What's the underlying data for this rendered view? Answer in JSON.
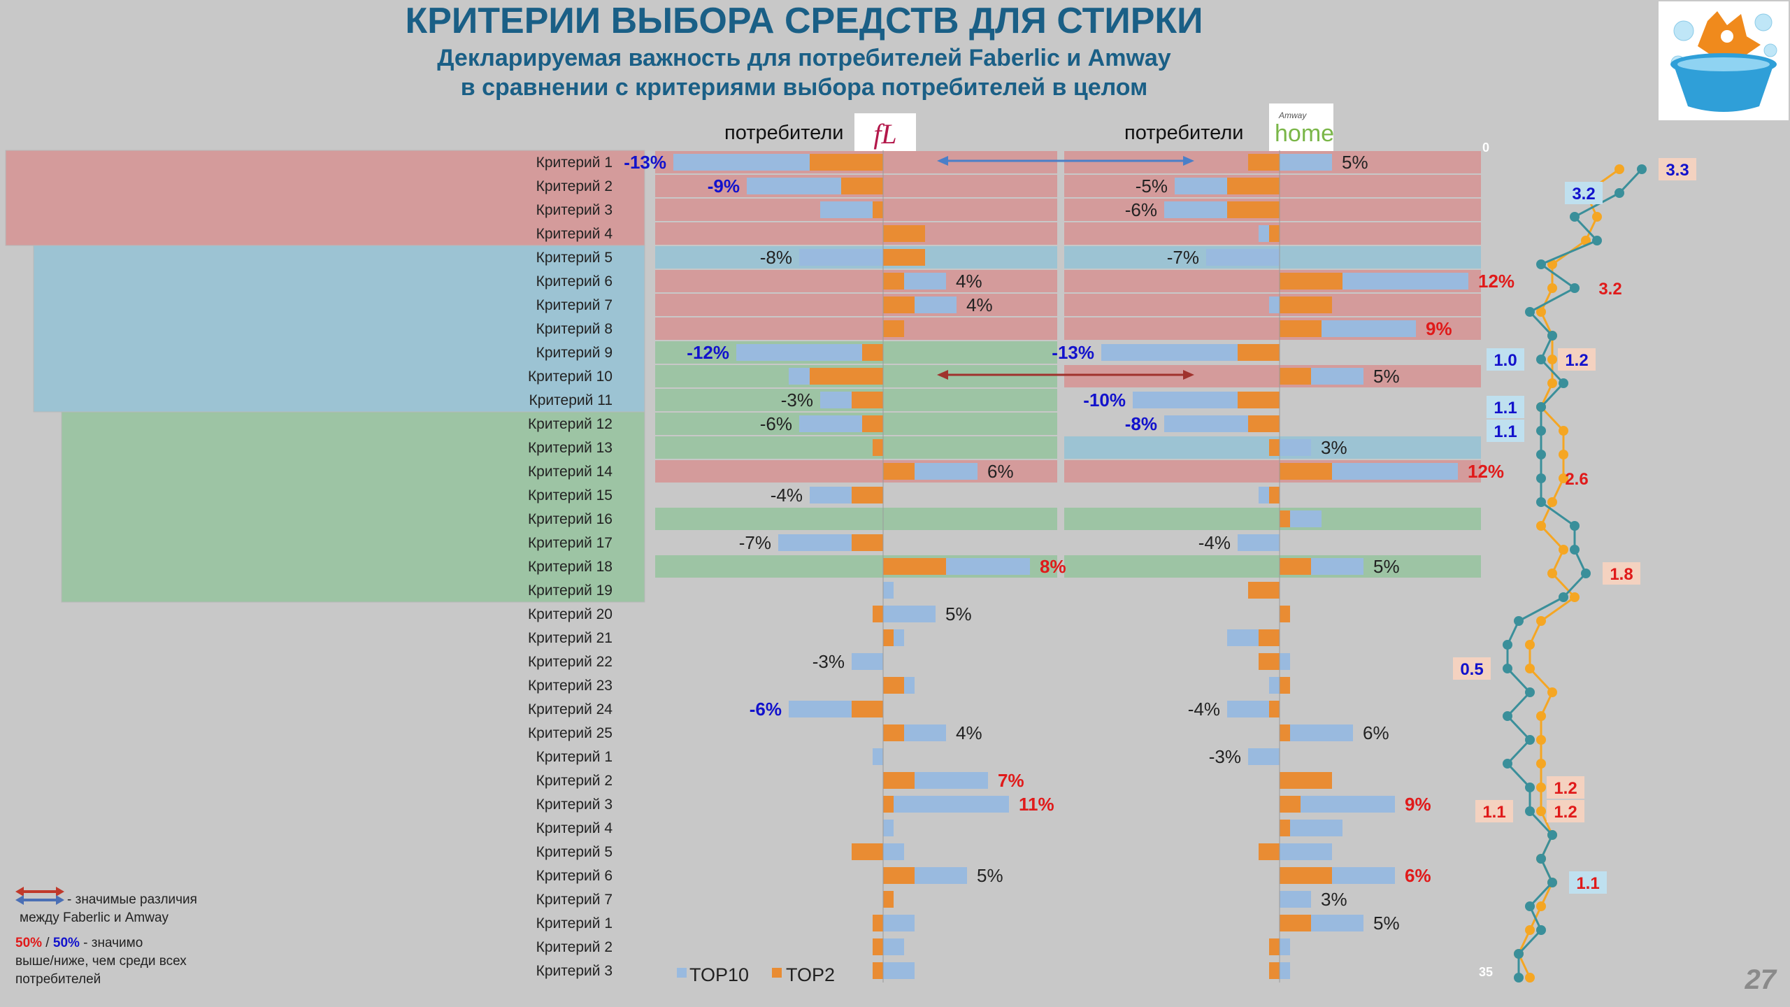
{
  "title": "КРИТЕРИИ ВЫБОРА СРЕДСТВ ДЛЯ СТИРКИ",
  "subtitle_line1": "Декларируемая важность для потребителей Faberlic и Amway",
  "subtitle_line2": "в сравнении с критериями выбора потребителей в целом",
  "faberlic_header": "потребители",
  "faberlic_logo_text": "fL",
  "amway_header": "потребители",
  "amway_logo_top": "Amway",
  "amway_logo_main": "home",
  "page_number": "27",
  "legend_note": {
    "arrow_text": "- значимые различия",
    "arrow_text2": "между Faberlic и Amway",
    "red_pct": "50%",
    "slash": " / ",
    "blue_pct": "50%",
    "sig_text": " - значимо",
    "sig_text2": "выше/ниже, чем среди всех",
    "sig_text3": "потребителей"
  },
  "colors": {
    "red_band": "#d49b9b",
    "blue_band": "#9cc3d3",
    "green_band": "#9dc4a4",
    "top10": "#99badf",
    "top2": "#e98c33",
    "title": "#1a5f86",
    "neg_sig": "#1212cc",
    "pos_sig": "#e01a1a",
    "line_teal": "#3a8f9a",
    "line_orange": "#f5a623"
  },
  "chart_data": {
    "type": "bar",
    "orientation": "horizontal-diverging",
    "legend": [
      "TOP10",
      "TOP2"
    ],
    "legend_placement": "bottom-center",
    "rank_axis_top": "0",
    "rank_axis_bottom": "35",
    "categories": [
      "Критерий 1",
      "Критерий 2",
      "Критерий 3",
      "Критерий 4",
      "Критерий 5",
      "Критерий 6",
      "Критерий 7",
      "Критерий 8",
      "Критерий 9",
      "Критерий 10",
      "Критерий 11",
      "Критерий 12",
      "Критерий 13",
      "Критерий 14",
      "Критерий 15",
      "Критерий 16",
      "Критерий 17",
      "Критерий 18",
      "Критерий 19",
      "Критерий 20",
      "Критерий 21",
      "Критерий 22",
      "Критерий 23",
      "Критерий 24",
      "Критерий 25",
      "Критерий 1",
      "Критерий 2",
      "Критерий 3",
      "Критерий 4",
      "Критерий 5",
      "Критерий 6",
      "Критерий 7",
      "Критерий 1",
      "Критерий 2",
      "Критерий 3"
    ],
    "faberlic": {
      "top10": [
        -13,
        -9,
        -5,
        0,
        -8,
        4,
        4,
        0,
        -12,
        -2,
        -3,
        -6,
        0,
        6,
        -4,
        0,
        -7,
        8,
        1,
        5,
        1,
        -3,
        1,
        -6,
        4,
        -1,
        7,
        11,
        1,
        2,
        5,
        0,
        3,
        2,
        3
      ],
      "top2": [
        -7,
        -4,
        -1,
        4,
        4,
        2,
        3,
        2,
        -2,
        -7,
        -3,
        -2,
        -1,
        3,
        -3,
        0,
        -3,
        6,
        0,
        -1,
        1,
        0,
        2,
        -3,
        2,
        0,
        3,
        1,
        0,
        -3,
        3,
        1,
        -1,
        -1,
        -1
      ],
      "labels": [
        "-13%",
        "-9%",
        "",
        "",
        "-8%",
        "4%",
        "4%",
        "",
        "-12%",
        "",
        "-3%",
        "-6%",
        "",
        "6%",
        "-4%",
        "",
        "-7%",
        "8%",
        "",
        "5%",
        "",
        "-3%",
        "",
        "-6%",
        "4%",
        "",
        "7%",
        "11%",
        "",
        "",
        "5%",
        "",
        "",
        "",
        ""
      ],
      "label_sig": [
        "neg",
        "neg",
        "",
        "",
        "",
        "",
        "",
        "",
        "neg",
        "",
        "",
        "",
        "",
        "",
        "",
        "",
        "",
        "pos",
        "",
        "",
        "",
        "",
        "",
        "neg",
        "",
        "",
        "pos",
        "pos",
        "",
        "",
        "",
        "",
        "",
        "",
        ""
      ]
    },
    "amway": {
      "top10": [
        5,
        -5,
        -6,
        -1,
        -7,
        12,
        -1,
        9,
        -13,
        5,
        -10,
        -8,
        3,
        12,
        -1,
        3,
        -4,
        5,
        0,
        0,
        -3,
        1,
        -1,
        -4,
        6,
        -3,
        0,
        9,
        5,
        5,
        6,
        3,
        5,
        1,
        1
      ],
      "top2": [
        -3,
        -5,
        -5,
        -1,
        0,
        6,
        5,
        4,
        -4,
        3,
        -4,
        -3,
        -1,
        5,
        -1,
        1,
        0,
        3,
        -3,
        1,
        -2,
        -2,
        1,
        -1,
        1,
        0,
        5,
        2,
        1,
        -2,
        5,
        0,
        3,
        -1,
        -1
      ],
      "labels": [
        "5%",
        "-5%",
        "-6%",
        "",
        "-7%",
        "12%",
        "",
        "9%",
        "-13%",
        "5%",
        "-10%",
        "-8%",
        "3%",
        "12%",
        "",
        "",
        "-4%",
        "5%",
        "",
        "",
        "",
        "",
        "",
        "-4%",
        "6%",
        "-3%",
        "",
        "9%",
        "",
        "",
        "6%",
        "3%",
        "5%",
        "",
        ""
      ],
      "label_sig": [
        "",
        "",
        "",
        "",
        "",
        "pos",
        "",
        "pos",
        "neg",
        "",
        "neg",
        "neg",
        "",
        "pos",
        "",
        "",
        "",
        "",
        "",
        "",
        "",
        "",
        "",
        "",
        "",
        "",
        "",
        "pos",
        "",
        "",
        "pos",
        "",
        "",
        "",
        ""
      ]
    },
    "row_bands": {
      "faberlic": [
        "red",
        "red",
        "red",
        "red",
        "blue",
        "red",
        "red",
        "red",
        "green",
        "green",
        "green",
        "green",
        "green",
        "red",
        "",
        "green",
        "",
        "green",
        "",
        "",
        "",
        "",
        "",
        "",
        "",
        "",
        "",
        "",
        "",
        "",
        "",
        "",
        "",
        "",
        ""
      ],
      "amway": [
        "red",
        "red",
        "red",
        "red",
        "blue",
        "red",
        "red",
        "red",
        "",
        "red",
        "",
        "",
        "blue",
        "red",
        "",
        "green",
        "",
        "green",
        "",
        "",
        "",
        "",
        "",
        "",
        "",
        "",
        "",
        "",
        "",
        "",
        "",
        "",
        "",
        "",
        ""
      ]
    },
    "left_groups": [
      {
        "color": "red",
        "from": 0,
        "to": 3
      },
      {
        "color": "blue",
        "from": 4,
        "to": 10
      },
      {
        "color": "green",
        "from": 11,
        "to": 18
      }
    ],
    "ratio_line_teal": [
      10,
      8,
      4,
      6,
      1,
      4,
      0,
      2,
      1,
      3,
      1,
      1,
      1,
      1,
      1,
      4,
      4,
      5,
      3,
      -1,
      -2,
      -2,
      0,
      -2,
      0,
      -2,
      0,
      0,
      2,
      1,
      2,
      0,
      1,
      -1,
      -1
    ],
    "ratio_line_orange": [
      8,
      5,
      6,
      5,
      2,
      2,
      1,
      2,
      2,
      2,
      1,
      3,
      3,
      3,
      2,
      1,
      3,
      2,
      4,
      1,
      0,
      0,
      2,
      1,
      1,
      1,
      1,
      1,
      2,
      1,
      2,
      1,
      0,
      -1,
      0
    ],
    "ratio_labels": [
      {
        "row": 0,
        "text": "3.3",
        "side": "right",
        "kind": "high",
        "color": "blue"
      },
      {
        "row": 1,
        "text": "3.2",
        "side": "left",
        "kind": "low",
        "color": "blue"
      },
      {
        "row": 5,
        "text": "3.2",
        "side": "right",
        "kind": "plain",
        "color": "red"
      },
      {
        "row": 8,
        "text": "1.0",
        "side": "left",
        "kind": "low",
        "color": "blue"
      },
      {
        "row": 8,
        "text": "1.2",
        "side": "right",
        "kind": "high",
        "color": "blue"
      },
      {
        "row": 10,
        "text": "1.1",
        "side": "left",
        "kind": "low",
        "color": "blue"
      },
      {
        "row": 11,
        "text": "1.1",
        "side": "left",
        "kind": "low",
        "color": "blue"
      },
      {
        "row": 13,
        "text": "2.6",
        "side": "right",
        "kind": "plain",
        "color": "red"
      },
      {
        "row": 17,
        "text": "1.8",
        "side": "right",
        "kind": "high",
        "color": "red"
      },
      {
        "row": 21,
        "text": "0.5",
        "side": "left",
        "kind": "high",
        "color": "blue"
      },
      {
        "row": 26,
        "text": "1.2",
        "side": "right",
        "kind": "high",
        "color": "red"
      },
      {
        "row": 27,
        "text": "1.1",
        "side": "left",
        "kind": "high",
        "color": "red"
      },
      {
        "row": 27,
        "text": "1.2",
        "side": "right",
        "kind": "high",
        "color": "red"
      },
      {
        "row": 30,
        "text": "1.1",
        "side": "right",
        "kind": "low",
        "color": "red"
      }
    ],
    "arrows": [
      {
        "row": 0,
        "color": "blue"
      },
      {
        "row": 9,
        "color": "red"
      }
    ]
  }
}
